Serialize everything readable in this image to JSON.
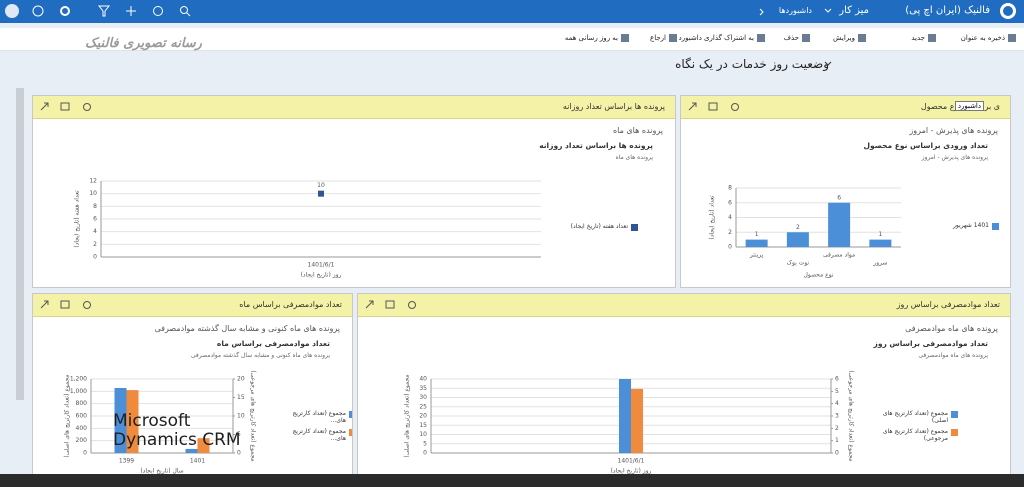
{
  "nav": {
    "org": "فالنیک (ایران اچ پی)",
    "area": "میز کار",
    "section": "داشبوردها"
  },
  "toolbar": [
    "ذخیره به عنوان",
    "جدید",
    "ویرایش",
    "حذف",
    "به اشتراک گذاری داشبورد",
    "ارجاع",
    "به روز رسانی همه"
  ],
  "watermark": "رسانه تصویری فالنیک",
  "dashboard_title": "وضعیت روز خدمات در یک نگاه",
  "tooltip": "داشبورد",
  "overlay": "Microsoft Dynamics CRM",
  "panels": [
    {
      "title": "ی براساس نوع محصول",
      "view": "پرونده های پذیرش - امروز",
      "chart": {
        "type": "bar",
        "title": "تعداد ورودی براساس نوع محصول",
        "subtitle": "پرونده های پذیرش - امروز",
        "y_label": "تعداد (تاریخ ایجاد)",
        "x_label": "نوع محصول",
        "categories": [
          "پرینتر",
          "نوت بوک",
          "مواد مصرفی",
          "سرور"
        ],
        "series": [
          {
            "name": "1401 شهریور",
            "color": "#4a8fd8",
            "values": [
              1,
              2,
              6,
              1
            ]
          }
        ],
        "ylim": [
          0,
          8
        ],
        "yticks": [
          0,
          2,
          4,
          6,
          8
        ],
        "grid": true,
        "data_labels": true
      }
    },
    {
      "title": "پرونده ها براساس تعداد روزانه",
      "view": "پرونده های ماه",
      "chart": {
        "type": "line",
        "title": "پرونده ها براساس تعداد روزانه",
        "subtitle": "پرونده های ماه",
        "y_label": "تعداد هفته (تاریخ ایجاد)",
        "x_label": "روز (تاریخ ایجاد)",
        "categories": [
          "1401/6/1"
        ],
        "series": [
          {
            "name": "تعداد هفته (تاریخ ایجاد)",
            "color": "#2f5597",
            "values": [
              10
            ]
          }
        ],
        "ylim": [
          0,
          12
        ],
        "yticks": [
          0,
          2,
          4,
          6,
          8,
          10,
          12
        ],
        "grid": true,
        "data_labels": true
      }
    },
    {
      "title": "تعداد موادمصرفی براساس ماه",
      "view": "پرونده های ماه کنونی و مشابه سال گذشته موادمصرفی",
      "chart": {
        "type": "bar",
        "title": "تعداد موادمصرفی براساس ماه",
        "subtitle": "پرونده های ماه کنونی و مشابه سال گذشته موادمصرفی",
        "y_label": "مجموع (تعداد کارتریج های اصلی)",
        "y2_label": "مجموع (تعداد کارتریج های مرجوعی)",
        "x_label": "سال (تاریخ ایجاد)",
        "categories": [
          "1399",
          "1401"
        ],
        "series": [
          {
            "name": "مجموع (تعداد کارتریج های...",
            "color": "#4a8fd8",
            "values": [
              1054,
              66
            ]
          },
          {
            "name": "مجموع (تعداد کارتریج های...",
            "color": "#f08a3c",
            "values": [
              17,
              4
            ],
            "axis": "y2"
          }
        ],
        "ylim": [
          0,
          1200
        ],
        "yticks": [
          0,
          200,
          400,
          600,
          800,
          {
            "value": 1000,
            "label": "1,000"
          },
          {
            "value": 1200,
            "label": "1,200"
          }
        ],
        "y2lim": [
          0,
          20
        ],
        "y2ticks": [
          0,
          5,
          10,
          15,
          20
        ],
        "grid": true,
        "data_labels": false
      }
    },
    {
      "title": "تعداد موادمصرفی براساس روز",
      "view": "پرونده های ماه موادمصرفی",
      "chart": {
        "type": "bar",
        "title": "تعداد موادمصرفی براساس روز",
        "subtitle": "پرونده های ماه موادمصرفی",
        "y_label": "مجموع (تعداد کارتریج های اصلی)",
        "y2_label": "مجموع (تعداد کارتریج های مرجوعی)",
        "x_label": "روز (تاریخ ایجاد)",
        "categories": [
          "1401/6/1"
        ],
        "series": [
          {
            "name": "مجموع (تعداد کارتریج های اصلی)",
            "color": "#4a8fd8",
            "values": [
              40
            ]
          },
          {
            "name": "مجموع (تعداد کارتریج های مرجوعی)",
            "color": "#f08a3c",
            "values": [
              5.2
            ],
            "axis": "y2"
          }
        ],
        "ylim": [
          0,
          40
        ],
        "yticks": [
          0,
          5,
          10,
          15,
          20,
          25,
          30,
          35,
          40
        ],
        "y2lim": [
          0,
          6
        ],
        "y2ticks": [
          0,
          1,
          2,
          3,
          4,
          5,
          6
        ],
        "grid": true,
        "data_labels": false
      }
    }
  ]
}
